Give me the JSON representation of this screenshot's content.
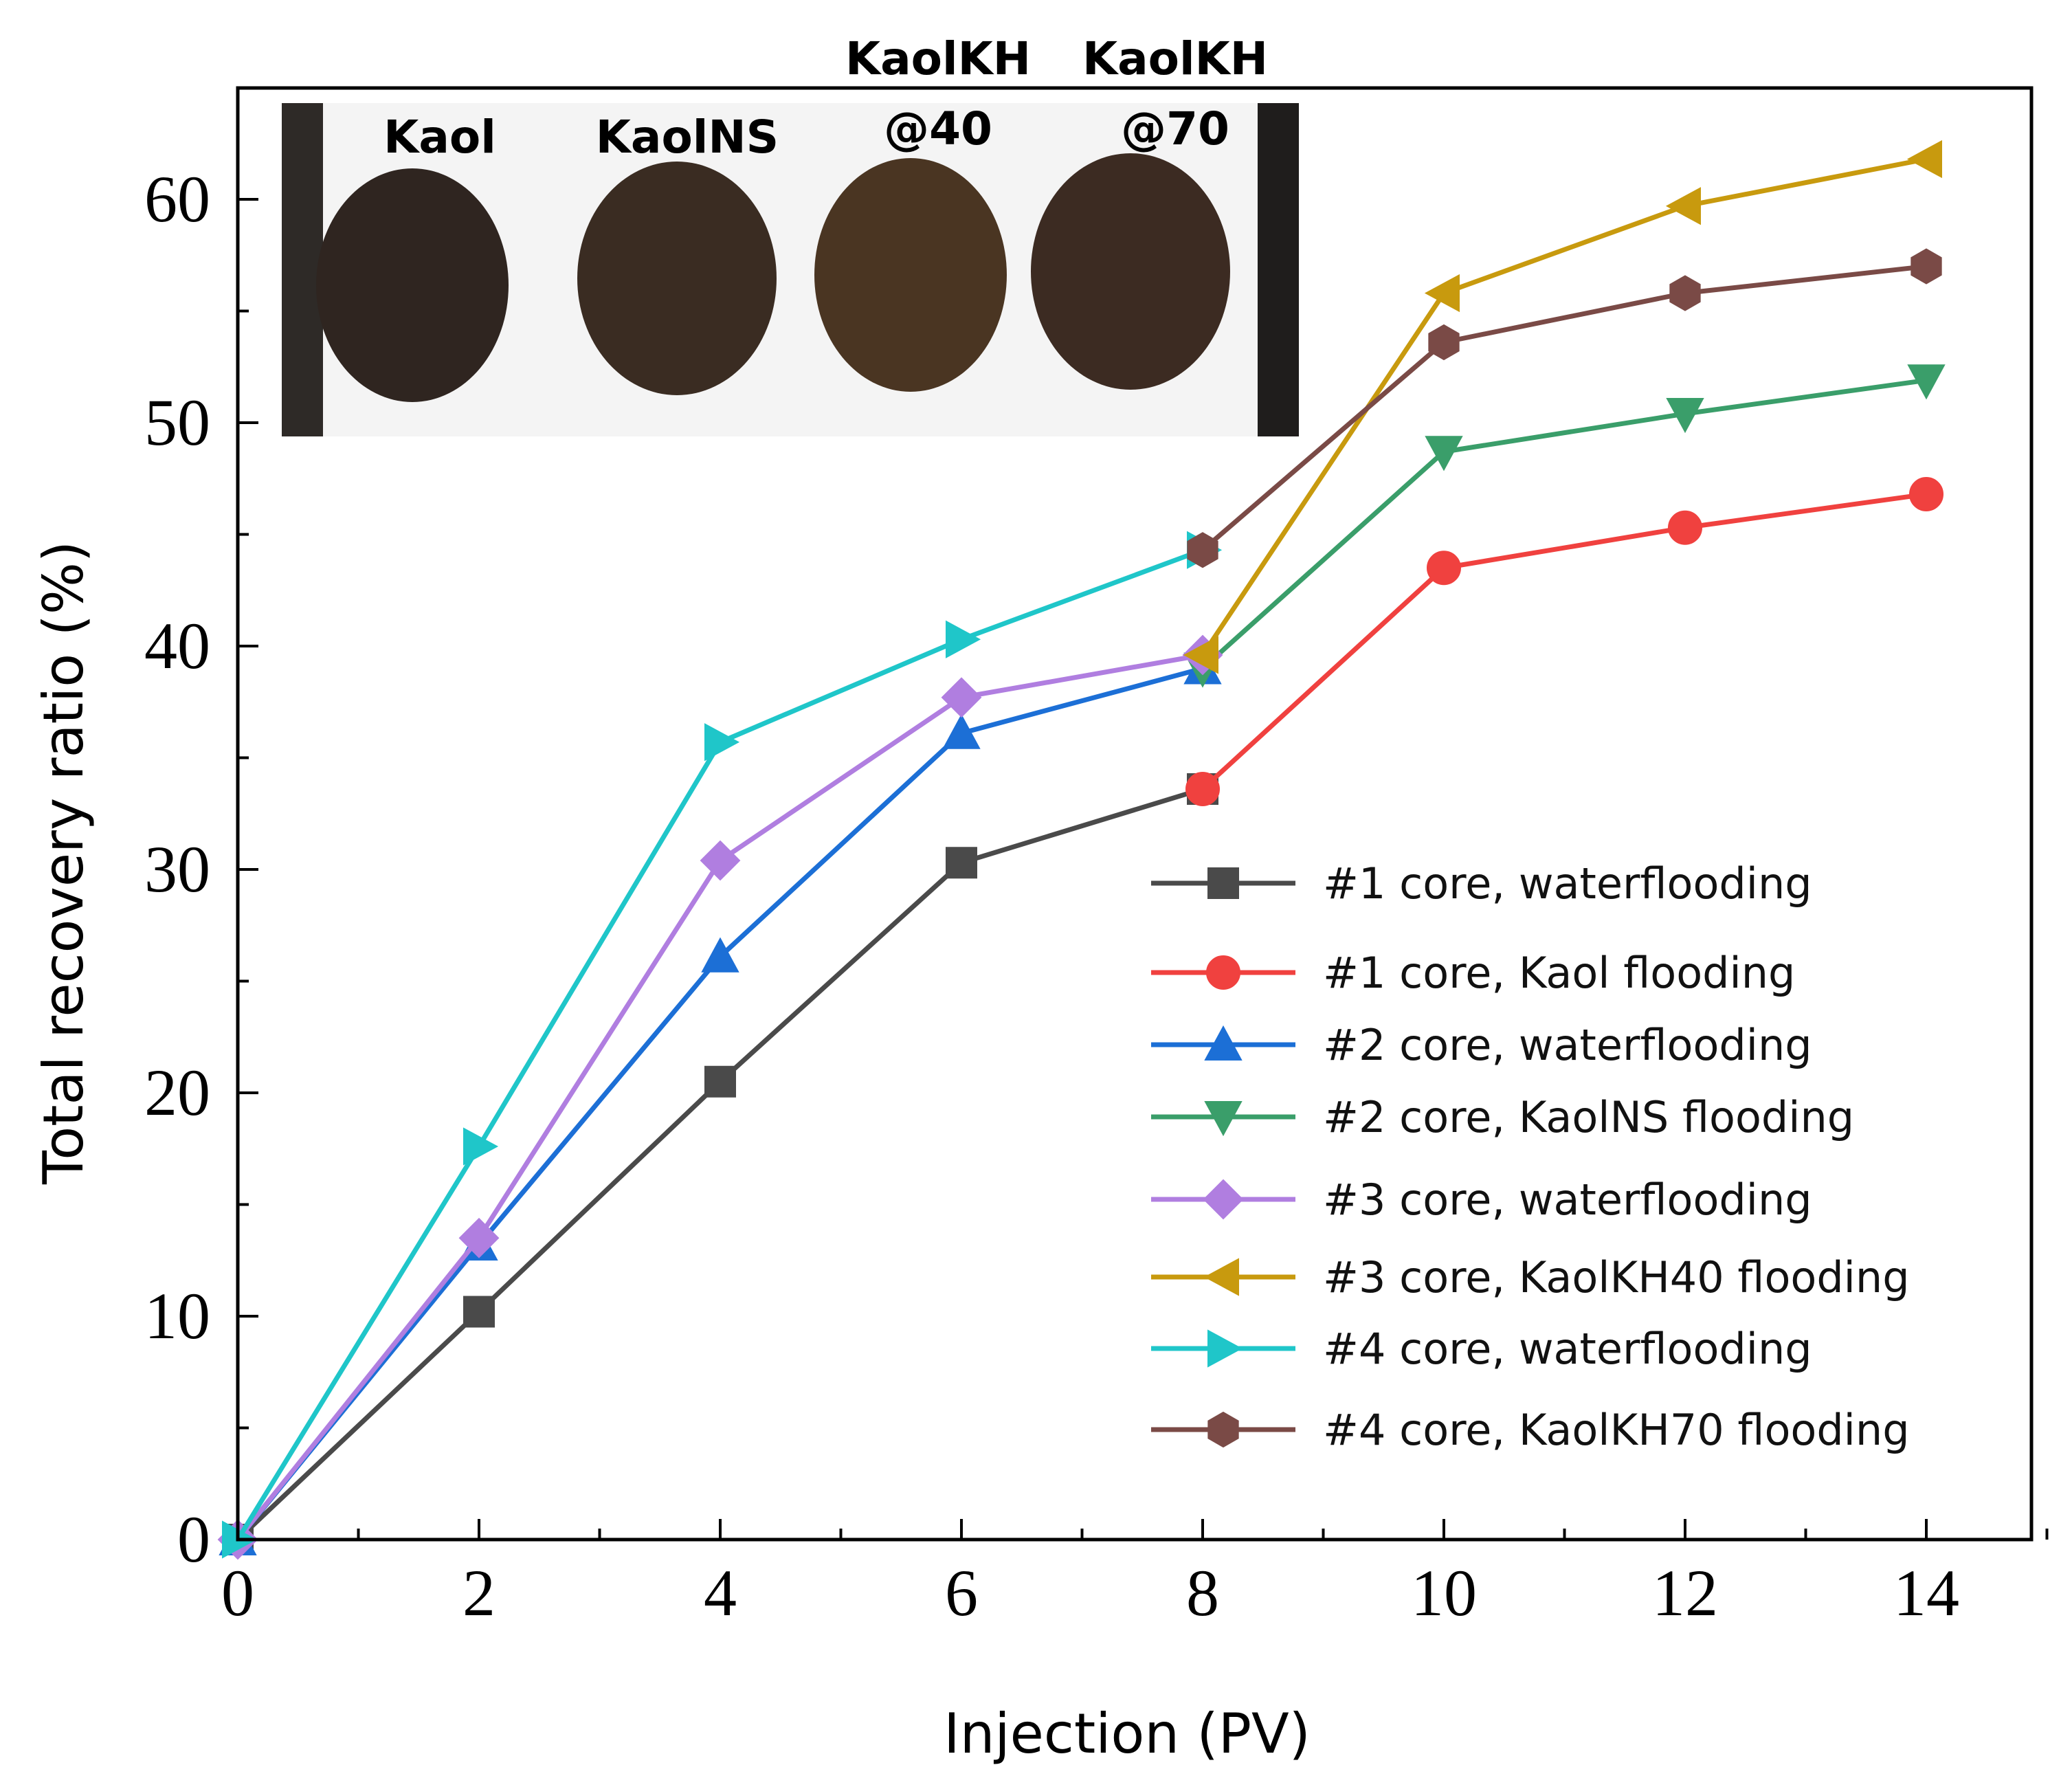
{
  "chart_data": {
    "type": "line",
    "xlabel": "Injection (PV)",
    "ylabel": "Total recovery ratio (%)",
    "xlim": [
      0,
      15
    ],
    "ylim": [
      0,
      65
    ],
    "xticks": [
      "0",
      "2",
      "4",
      "6",
      "8",
      "10",
      "12",
      "14"
    ],
    "yticks": [
      "0",
      "10",
      "20",
      "30",
      "40",
      "50",
      "60"
    ],
    "legend_position": "bottom-right",
    "grid": false,
    "inset_photo_labels": [
      "Kaol",
      "KaolNS",
      "KaolKH",
      "@40",
      "KaolKH",
      "@70"
    ],
    "series": [
      {
        "name": "#1 core, waterflooding",
        "color": "#4a4a4a",
        "marker": "square",
        "x": [
          0,
          2,
          4,
          6,
          8
        ],
        "y": [
          0,
          10.2,
          20.5,
          30.3,
          33.6
        ]
      },
      {
        "name": "#1 core, Kaol flooding",
        "color": "#f0413f",
        "marker": "circle",
        "x": [
          8,
          10,
          12,
          14
        ],
        "y": [
          33.6,
          43.5,
          45.3,
          46.8
        ]
      },
      {
        "name": "#2 core, waterflooding",
        "color": "#1c6fd6",
        "marker": "triangle-up",
        "x": [
          0,
          2,
          4,
          6,
          8
        ],
        "y": [
          0,
          13.2,
          26.1,
          36.1,
          39.0
        ]
      },
      {
        "name": "#2 core, KaolNS flooding",
        "color": "#3a9e6a",
        "marker": "triangle-down",
        "x": [
          8,
          10,
          12,
          14
        ],
        "y": [
          39.0,
          48.7,
          50.4,
          51.9
        ]
      },
      {
        "name": "#3 core, waterflooding",
        "color": "#b07ee0",
        "marker": "diamond",
        "x": [
          0,
          2,
          4,
          6,
          8
        ],
        "y": [
          0,
          13.5,
          30.4,
          37.7,
          39.6
        ]
      },
      {
        "name": "#3 core, KaolKH40 flooding",
        "color": "#c89a0e",
        "marker": "triangle-left",
        "x": [
          8,
          10,
          12,
          14
        ],
        "y": [
          39.6,
          55.8,
          59.7,
          61.8
        ]
      },
      {
        "name": "#4 core, waterflooding",
        "color": "#1fc6c9",
        "marker": "triangle-right",
        "x": [
          0,
          2,
          4,
          6,
          8
        ],
        "y": [
          0,
          17.6,
          35.7,
          40.3,
          44.3
        ]
      },
      {
        "name": "#4 core, KaolKH70 flooding",
        "color": "#7a4a46",
        "marker": "hexagon",
        "x": [
          8,
          10,
          12,
          14
        ],
        "y": [
          44.3,
          53.6,
          55.8,
          57.0
        ]
      }
    ]
  }
}
